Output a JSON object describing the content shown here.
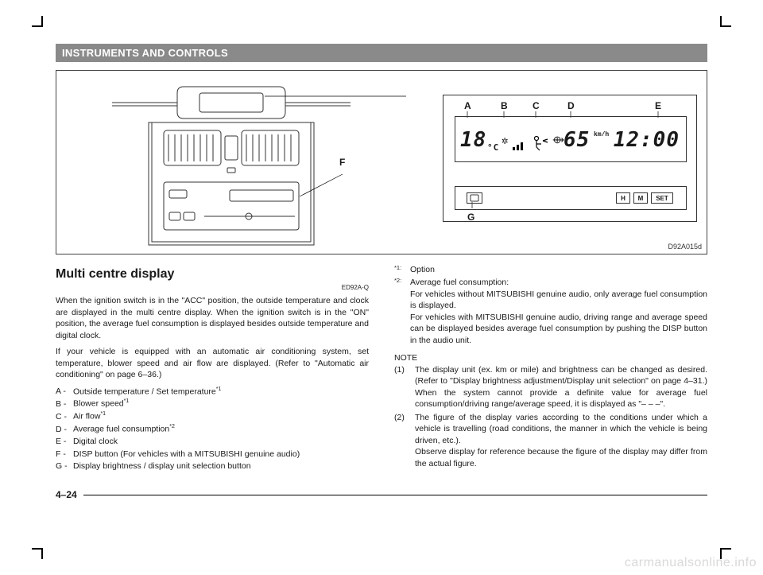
{
  "section_title": "INSTRUMENTS AND CONTROLS",
  "figure": {
    "code": "D92A015d",
    "callouts": {
      "A": "A",
      "B": "B",
      "C": "C",
      "D": "D",
      "E": "E",
      "F": "F",
      "G": "G"
    },
    "lcd": {
      "temp_value": "18",
      "temp_unit": "°C",
      "fan_icon": "✲",
      "vent_icon": "⟴",
      "avg_value": "65",
      "avg_unit": "km/h",
      "clock": "12:00",
      "btn_h": "H",
      "btn_m": "M",
      "btn_set": "SET"
    },
    "colors": {
      "stroke": "#333333",
      "bg": "#ffffff",
      "text": "#1a1a1a"
    }
  },
  "left": {
    "heading": "Multi centre display",
    "ref": "ED92A-Q",
    "para1": "When the ignition switch is in the \"ACC\" position, the outside temperature and clock are displayed in the multi centre display. When the ignition switch is in the \"ON\" position, the average fuel consumption is displayed besides outside temperature and digital clock.",
    "para2": "If your vehicle is equipped with an automatic air conditioning system, set temperature, blower speed and air flow are displayed. (Refer to \"Automatic air conditioning\" on page 6–36.)",
    "items": [
      {
        "l": "A -",
        "t": "Outside temperature / Set temperature",
        "sup": "*1"
      },
      {
        "l": "B -",
        "t": "Blower speed",
        "sup": "*1"
      },
      {
        "l": "C -",
        "t": "Air flow",
        "sup": "*1"
      },
      {
        "l": "D -",
        "t": "Average fuel consumption",
        "sup": "*2"
      },
      {
        "l": "E -",
        "t": "Digital clock",
        "sup": ""
      },
      {
        "l": "F -",
        "t": "DISP button (For vehicles with a MITSUBISHI genuine audio)",
        "sup": ""
      },
      {
        "l": "G -",
        "t": "Display brightness / display unit selection button",
        "sup": ""
      }
    ]
  },
  "right": {
    "footnotes": [
      {
        "n": "*1:",
        "t": "Option"
      },
      {
        "n": "*2:",
        "t": "Average fuel consumption:\nFor vehicles without MITSUBISHI genuine audio, only average fuel consumption is displayed.\nFor vehicles with MITSUBISHI genuine audio, driving range and average speed can be displayed besides average fuel consumption by pushing the DISP button in the audio unit."
      }
    ],
    "note_label": "NOTE",
    "notes": [
      {
        "n": "(1)",
        "t": "The display unit (ex. km or mile) and brightness can be changed as desired. (Refer to \"Display brightness adjustment/Display unit selection\" on page 4–31.) When the system cannot provide a definite value for average fuel consumption/driving range/average speed, it is displayed  as \"– – –\"."
      },
      {
        "n": "(2)",
        "t": "The figure of the display varies according to the conditions under which a vehicle is travelling (road conditions, the manner in which the vehicle is being driven, etc.).\nObserve display for reference because the figure of the display may differ from the actual figure."
      }
    ]
  },
  "page_number": "4–24",
  "watermark": "carmanualsonline.info"
}
